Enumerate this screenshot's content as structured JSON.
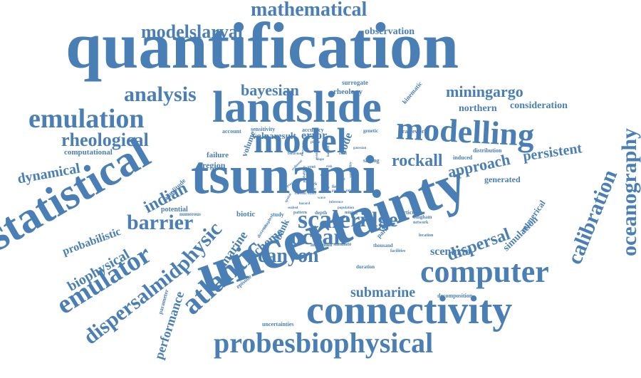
{
  "word_cloud": {
    "color": "#4a7fb5",
    "words": [
      "quantification",
      "uncertainty",
      "tsunami",
      "statistical",
      "landslide",
      "connectivity",
      "model",
      "modelling",
      "computer",
      "probesbiophysical",
      "atlantic",
      "emulation",
      "emulator",
      "oceanography",
      "calibration",
      "scale",
      "ocean",
      "ridge",
      "dispersalmid",
      "physic",
      "barrier",
      "analysis",
      "mathematical",
      "modelslarval",
      "rheological",
      "canyon",
      "dispersal",
      "submarine",
      "bayesian",
      "miningargo",
      "approach",
      "persistent",
      "rockall",
      "indian",
      "dynamical",
      "biophysical",
      "scenario",
      "scheme",
      "marine",
      "error",
      "code",
      "observation",
      "probabilistic",
      "performance",
      "northern",
      "consideration",
      "simulation",
      "numerical",
      "generated",
      "computational",
      "rheology",
      "surrogate",
      "kinematic",
      "region",
      "potential",
      "amplitude",
      "failure",
      "volume",
      "volnaresult",
      "sensitivity",
      "accuracy",
      "framework",
      "account",
      "genetic",
      "distribution",
      "induced",
      "sliding",
      "study",
      "bank",
      "biotic",
      "numerous",
      "parameter",
      "uncertainties",
      "decomposition",
      "thousand",
      "facilities",
      "simulate",
      "maximum",
      "depth",
      "pattern",
      "particular",
      "bingham",
      "network",
      "location",
      "park",
      "duration",
      "mining",
      "episode",
      "field",
      "paper",
      "work",
      "zone",
      "spatial",
      "complex",
      "distance",
      "event",
      "plume",
      "variability",
      "flow",
      "vent",
      "effect",
      "sediment",
      "process",
      "larval",
      "morphology",
      "deep",
      "habitat",
      "wave",
      "risk",
      "hazard",
      "behaviour",
      "coral",
      "probability",
      "inference",
      "seabed",
      "population",
      "slope",
      "current",
      "mixing",
      "gaussian",
      "prior"
    ]
  }
}
